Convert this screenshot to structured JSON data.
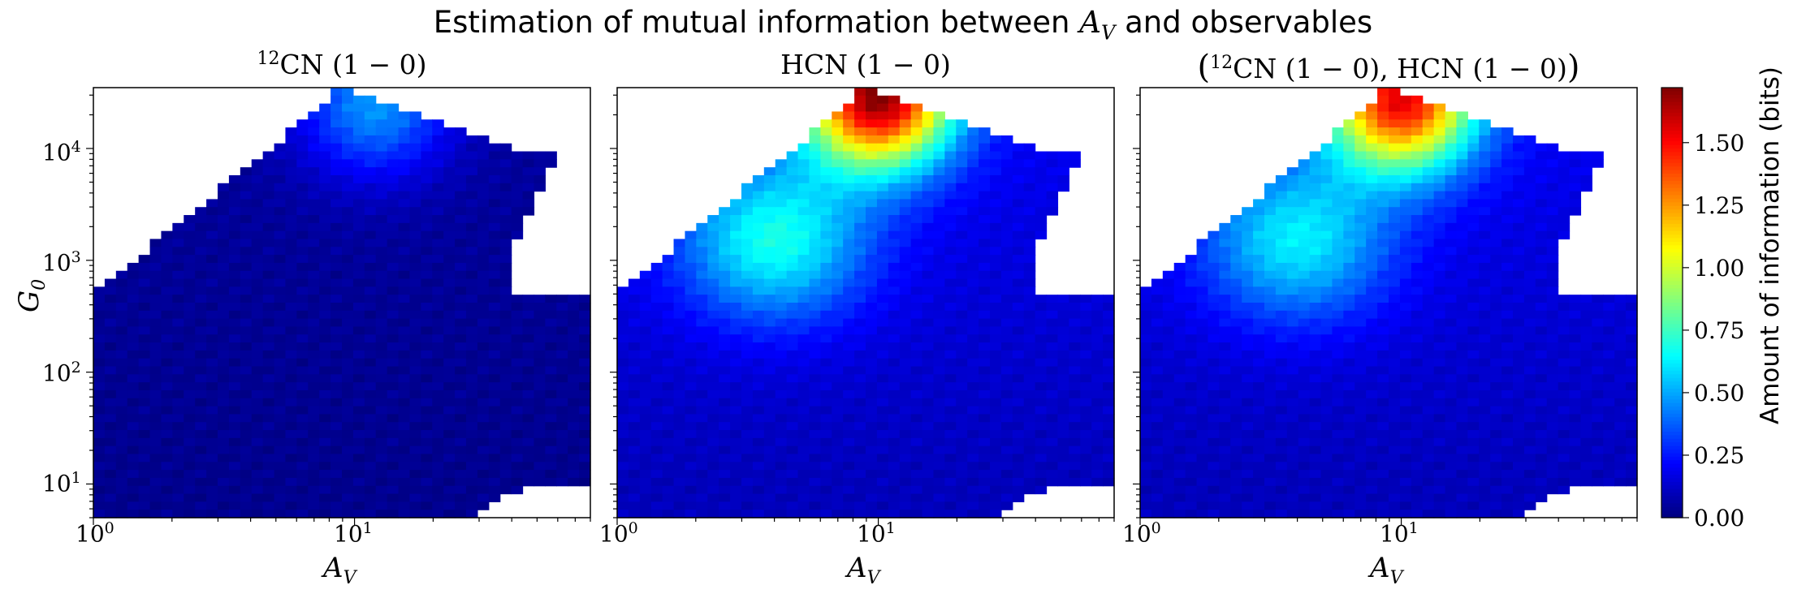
{
  "figure": {
    "suptitle_prefix": "Estimation of mutual information between ",
    "suptitle_var": "A",
    "suptitle_var_sub": "V",
    "suptitle_suffix": " and observables"
  },
  "colorbar": {
    "label": "Amount of information (bits)",
    "ticks": [
      "0.00",
      "0.25",
      "0.50",
      "0.75",
      "1.00",
      "1.25",
      "1.50"
    ],
    "tick_values": [
      0.0,
      0.25,
      0.5,
      0.75,
      1.0,
      1.25,
      1.5
    ],
    "range": [
      0.0,
      1.72
    ],
    "colormap": "jet"
  },
  "chart_data": [
    {
      "type": "heatmap",
      "title": "12CN (1 − 0)",
      "title_parts": {
        "sup": "12",
        "text": "CN (1 − 0)"
      },
      "xlabel": "A_V",
      "ylabel": "G_0",
      "xscale": "log",
      "yscale": "log",
      "xlim": [
        1,
        80
      ],
      "ylim": [
        5,
        35000
      ],
      "xticks": [
        "10^0",
        "10^1"
      ],
      "yticks": [
        "10^1",
        "10^2",
        "10^3",
        "10^4"
      ],
      "peak_value": 0.47,
      "peak_location": {
        "A_V": 12,
        "G_0": 25000
      },
      "background_value": 0.05
    },
    {
      "type": "heatmap",
      "title": "HCN (1 − 0)",
      "xlabel": "A_V",
      "xscale": "log",
      "yscale": "log",
      "xlim": [
        1,
        80
      ],
      "ylim": [
        5,
        35000
      ],
      "xticks": [
        "10^0",
        "10^1"
      ],
      "peak_value": 1.72,
      "peak_location": {
        "A_V": 10,
        "G_0": 30000
      },
      "secondary_peak": {
        "A_V": 4,
        "G_0": 1500,
        "value": 0.72
      },
      "background_value": 0.2
    },
    {
      "type": "heatmap",
      "title": "(12CN (1 − 0), HCN (1 − 0))",
      "title_parts": {
        "open": "(",
        "sup": "12",
        "text1": "CN (1 − 0), HCN (1 − 0)",
        "close": ")"
      },
      "xlabel": "A_V",
      "xscale": "log",
      "yscale": "log",
      "xlim": [
        1,
        80
      ],
      "ylim": [
        5,
        35000
      ],
      "xticks": [
        "10^0",
        "10^1"
      ],
      "peak_value": 1.55,
      "peak_location": {
        "A_V": 10,
        "G_0": 28000
      },
      "secondary_peak": {
        "A_V": 4,
        "G_0": 1500,
        "value": 0.66
      },
      "background_value": 0.2
    }
  ],
  "tick_text": {
    "base": "10",
    "exp0": "0",
    "exp1": "1",
    "exp2": "2",
    "exp3": "3",
    "exp4": "4"
  },
  "axis_text": {
    "A": "A",
    "V": "V",
    "G": "G",
    "zero": "0"
  }
}
